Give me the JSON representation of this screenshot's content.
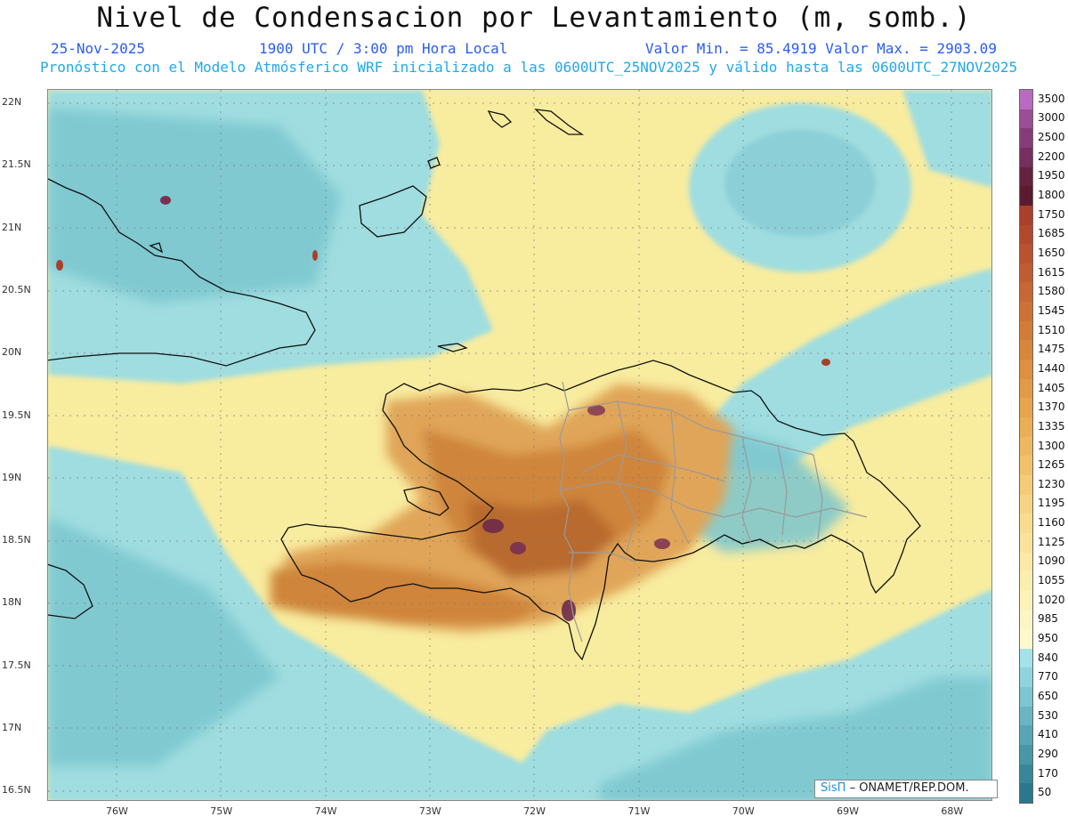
{
  "header": {
    "title": "Nivel de Condensacion por Levantamiento (m, somb.)",
    "date": "25-Nov-2025",
    "time": "1900 UTC / 3:00 pm Hora Local",
    "stats": "Valor Min. = 85.4919  Valor Max. = 2903.09",
    "model_line": "Pronóstico con el Modelo Atmósferico WRF inicializado a las 0600UTC_25NOV2025 y válido hasta las  0600UTC_27NOV2025"
  },
  "map": {
    "lat_labels": [
      "22N",
      "21.5N",
      "21N",
      "20.5N",
      "20N",
      "19.5N",
      "19N",
      "18.5N",
      "18N",
      "17.5N",
      "17N",
      "16.5N"
    ],
    "lon_labels": [
      "76W",
      "75W",
      "74W",
      "73W",
      "72W",
      "71W",
      "70W",
      "69W",
      "68W"
    ],
    "colors": {
      "ocean_low": "#9fdde0",
      "sea_mid": "#7cc6cf",
      "base": "#f8ec9f",
      "land_high": "#d08a3c",
      "peak": "#6b2a4a"
    }
  },
  "legend": {
    "labels": [
      "3500",
      "3000",
      "2500",
      "2200",
      "1950",
      "1800",
      "1750",
      "1685",
      "1650",
      "1615",
      "1580",
      "1545",
      "1510",
      "1475",
      "1440",
      "1405",
      "1370",
      "1335",
      "1300",
      "1265",
      "1230",
      "1195",
      "1160",
      "1125",
      "1090",
      "1055",
      "1020",
      "985",
      "950",
      "840",
      "770",
      "650",
      "530",
      "410",
      "290",
      "170",
      "50"
    ],
    "colors": [
      "#b86bc0",
      "#9b4e93",
      "#873c78",
      "#762f5e",
      "#64223f",
      "#5a1a2f",
      "#a8402a",
      "#b1492c",
      "#b9522e",
      "#c05d30",
      "#c76733",
      "#cd7236",
      "#d37c39",
      "#d8863c",
      "#dd9040",
      "#e19a46",
      "#e6a44d",
      "#eaae56",
      "#eeb860",
      "#f1c26b",
      "#f4cb77",
      "#f6d483",
      "#f8dc8f",
      "#f9e39b",
      "#faeaa6",
      "#fbefb0",
      "#fcf3ba",
      "#fdf6c4",
      "#fef9cd",
      "#a3e2e8",
      "#8fd4dc",
      "#7cc6cf",
      "#69b6c2",
      "#57a6b4",
      "#4797a7",
      "#388799",
      "#2b778b"
    ]
  },
  "credit": {
    "brand": "SisΠ",
    "text": "– ONAMET/REP.DOM."
  }
}
